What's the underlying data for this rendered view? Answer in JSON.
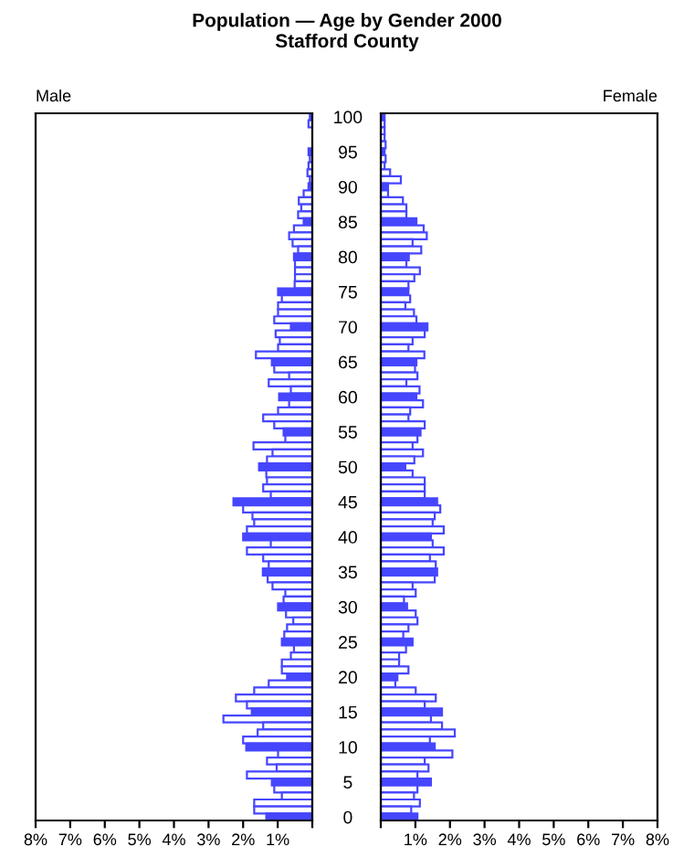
{
  "chart_data": [
    {
      "type": "bar",
      "orientation": "horizontal",
      "title": "Population — Age by Gender 2000",
      "subtitle": "Stafford County",
      "annotations": [
        "Male"
      ],
      "tick_labels": "x",
      "categories": [
        "100",
        null,
        null,
        null,
        null,
        "95",
        null,
        null,
        null,
        null,
        "90",
        null,
        null,
        null,
        null,
        "85",
        null,
        null,
        null,
        null,
        "80",
        null,
        null,
        null,
        null,
        "75",
        null,
        null,
        null,
        null,
        "70",
        null,
        null,
        null,
        null,
        "65",
        null,
        null,
        null,
        null,
        "60",
        null,
        null,
        null,
        null,
        "55",
        null,
        null,
        null,
        null,
        "50",
        null,
        null,
        null,
        null,
        "45",
        null,
        null,
        null,
        null,
        "40",
        null,
        null,
        null,
        null,
        "35",
        null,
        null,
        null,
        null,
        "30",
        null,
        null,
        null,
        null,
        "25",
        null,
        null,
        null,
        null,
        "20",
        null,
        null,
        null,
        null,
        "15",
        null,
        null,
        null,
        null,
        "10",
        null,
        null,
        null,
        null,
        "5",
        null,
        null,
        null,
        null,
        "0"
      ],
      "xlim": [
        8,
        0
      ],
      "xticks": [
        {
          "value": 8,
          "label": "8%"
        },
        {
          "value": 7,
          "label": "7%"
        },
        {
          "value": 6,
          "label": "6%"
        },
        {
          "value": 5,
          "label": "5%"
        },
        {
          "value": 4,
          "label": "4%"
        },
        {
          "value": 3,
          "label": "3%"
        },
        {
          "value": 2,
          "label": "2%"
        },
        {
          "value": 1,
          "label": "1%"
        },
        {
          "value": 0,
          "label": null
        }
      ],
      "series": [
        {
          "color": "#4646ff",
          "colors": [
            "#4646ff",
            "#ffffff",
            "#ffffff",
            "#ffffff",
            "#ffffff",
            "#4646ff",
            "#ffffff",
            "#ffffff",
            "#ffffff",
            "#ffffff",
            "#4646ff",
            "#ffffff",
            "#ffffff",
            "#ffffff",
            "#ffffff",
            "#4646ff",
            "#ffffff",
            "#ffffff",
            "#ffffff",
            "#ffffff",
            "#4646ff",
            "#ffffff",
            "#ffffff",
            "#ffffff",
            "#ffffff",
            "#4646ff",
            "#ffffff",
            "#ffffff",
            "#ffffff",
            "#ffffff",
            "#4646ff",
            "#ffffff",
            "#ffffff",
            "#ffffff",
            "#ffffff",
            "#4646ff",
            "#ffffff",
            "#ffffff",
            "#ffffff",
            "#ffffff",
            "#4646ff",
            "#ffffff",
            "#ffffff",
            "#ffffff",
            "#ffffff",
            "#4646ff",
            "#ffffff",
            "#ffffff",
            "#ffffff",
            "#ffffff",
            "#4646ff",
            "#ffffff",
            "#ffffff",
            "#ffffff",
            "#ffffff",
            "#4646ff",
            "#ffffff",
            "#ffffff",
            "#ffffff",
            "#ffffff",
            "#4646ff",
            "#ffffff",
            "#ffffff",
            "#ffffff",
            "#ffffff",
            "#4646ff",
            "#ffffff",
            "#ffffff",
            "#ffffff",
            "#ffffff",
            "#4646ff",
            "#ffffff",
            "#ffffff",
            "#ffffff",
            "#ffffff",
            "#4646ff",
            "#ffffff",
            "#ffffff",
            "#ffffff",
            "#ffffff",
            "#4646ff",
            "#ffffff",
            "#ffffff",
            "#ffffff",
            "#ffffff",
            "#4646ff",
            "#ffffff",
            "#ffffff",
            "#ffffff",
            "#ffffff",
            "#4646ff",
            "#ffffff",
            "#ffffff",
            "#ffffff",
            "#ffffff",
            "#4646ff",
            "#ffffff",
            "#ffffff",
            "#ffffff",
            "#ffffff",
            "#4646ff"
          ],
          "values": [
            0.07,
            0.11,
            null,
            null,
            null,
            0.11,
            0.07,
            0.11,
            0.14,
            0.07,
            0.11,
            0.25,
            0.39,
            0.32,
            0.41,
            0.25,
            0.53,
            0.67,
            0.57,
            0.41,
            0.53,
            0.5,
            0.5,
            0.5,
            0.51,
            0.99,
            0.88,
            0.99,
            0.99,
            1.1,
            0.62,
            1.06,
            0.94,
            0.99,
            1.63,
            1.17,
            1.1,
            0.67,
            1.26,
            0.62,
            0.96,
            0.67,
            0.99,
            1.42,
            1.1,
            0.83,
            0.78,
            1.7,
            1.15,
            1.31,
            1.54,
            1.33,
            1.31,
            1.42,
            1.2,
            2.28,
            2.0,
            1.73,
            1.68,
            1.89,
            2.0,
            1.2,
            1.89,
            1.42,
            1.26,
            1.43,
            1.29,
            1.15,
            0.78,
            0.83,
            0.99,
            0.76,
            0.55,
            0.73,
            0.81,
            0.88,
            0.53,
            0.62,
            0.88,
            0.88,
            0.73,
            1.26,
            1.68,
            2.21,
            1.89,
            1.75,
            2.57,
            1.42,
            1.58,
            2.0,
            1.91,
            0.99,
            1.31,
            1.03,
            1.89,
            1.17,
            1.1,
            0.88,
            1.68,
            1.68,
            1.33
          ]
        }
      ]
    },
    {
      "type": "bar",
      "orientation": "horizontal",
      "annotations": [
        "Female"
      ],
      "categories": [
        "100",
        null,
        null,
        null,
        null,
        "95",
        null,
        null,
        null,
        null,
        "90",
        null,
        null,
        null,
        null,
        "85",
        null,
        null,
        null,
        null,
        "80",
        null,
        null,
        null,
        null,
        "75",
        null,
        null,
        null,
        null,
        "70",
        null,
        null,
        null,
        null,
        "65",
        null,
        null,
        null,
        null,
        "60",
        null,
        null,
        null,
        null,
        "55",
        null,
        null,
        null,
        null,
        "50",
        null,
        null,
        null,
        null,
        "45",
        null,
        null,
        null,
        null,
        "40",
        null,
        null,
        null,
        null,
        "35",
        null,
        null,
        null,
        null,
        "30",
        null,
        null,
        null,
        null,
        "25",
        null,
        null,
        null,
        null,
        "20",
        null,
        null,
        null,
        null,
        "15",
        null,
        null,
        null,
        null,
        "10",
        null,
        null,
        null,
        null,
        "5",
        null,
        null,
        null,
        null,
        "0"
      ],
      "xlim": [
        0,
        8
      ],
      "xticks": [
        {
          "value": 0,
          "label": null
        },
        {
          "value": 1,
          "label": "1%"
        },
        {
          "value": 2,
          "label": "2%"
        },
        {
          "value": 3,
          "label": "3%"
        },
        {
          "value": 4,
          "label": "4%"
        },
        {
          "value": 5,
          "label": "5%"
        },
        {
          "value": 6,
          "label": "6%"
        },
        {
          "value": 7,
          "label": "7%"
        },
        {
          "value": 8,
          "label": "8%"
        }
      ],
      "series": [
        {
          "color": "#4646ff",
          "colors": [
            "#4646ff",
            "#ffffff",
            "#ffffff",
            "#ffffff",
            "#ffffff",
            "#4646ff",
            "#ffffff",
            "#ffffff",
            "#ffffff",
            "#ffffff",
            "#4646ff",
            "#ffffff",
            "#ffffff",
            "#ffffff",
            "#ffffff",
            "#4646ff",
            "#ffffff",
            "#ffffff",
            "#ffffff",
            "#ffffff",
            "#4646ff",
            "#ffffff",
            "#ffffff",
            "#ffffff",
            "#ffffff",
            "#4646ff",
            "#ffffff",
            "#ffffff",
            "#ffffff",
            "#ffffff",
            "#4646ff",
            "#ffffff",
            "#ffffff",
            "#ffffff",
            "#ffffff",
            "#4646ff",
            "#ffffff",
            "#ffffff",
            "#ffffff",
            "#ffffff",
            "#4646ff",
            "#ffffff",
            "#ffffff",
            "#ffffff",
            "#ffffff",
            "#4646ff",
            "#ffffff",
            "#ffffff",
            "#ffffff",
            "#ffffff",
            "#4646ff",
            "#ffffff",
            "#ffffff",
            "#ffffff",
            "#ffffff",
            "#4646ff",
            "#ffffff",
            "#ffffff",
            "#ffffff",
            "#ffffff",
            "#4646ff",
            "#ffffff",
            "#ffffff",
            "#ffffff",
            "#ffffff",
            "#4646ff",
            "#ffffff",
            "#ffffff",
            "#ffffff",
            "#ffffff",
            "#4646ff",
            "#ffffff",
            "#ffffff",
            "#ffffff",
            "#ffffff",
            "#4646ff",
            "#ffffff",
            "#ffffff",
            "#ffffff",
            "#ffffff",
            "#4646ff",
            "#ffffff",
            "#ffffff",
            "#ffffff",
            "#ffffff",
            "#4646ff",
            "#ffffff",
            "#ffffff",
            "#ffffff",
            "#ffffff",
            "#4646ff",
            "#ffffff",
            "#ffffff",
            "#ffffff",
            "#ffffff",
            "#4646ff",
            "#ffffff",
            "#ffffff",
            "#ffffff",
            "#ffffff",
            "#4646ff"
          ],
          "values": [
            0.11,
            0.11,
            0.11,
            0.11,
            0.14,
            0.11,
            0.14,
            0.11,
            0.27,
            0.58,
            0.21,
            0.21,
            0.64,
            0.74,
            0.74,
            1.03,
            1.24,
            1.33,
            0.92,
            1.17,
            0.81,
            0.74,
            1.13,
            0.97,
            0.8,
            0.8,
            0.85,
            0.71,
            0.96,
            1.03,
            1.35,
            1.27,
            0.92,
            0.8,
            1.26,
            1.03,
            0.99,
            1.06,
            0.74,
            1.12,
            1.03,
            1.22,
            0.85,
            0.8,
            1.27,
            1.15,
            1.06,
            0.92,
            1.22,
            0.97,
            0.71,
            0.92,
            1.27,
            1.27,
            1.27,
            1.63,
            1.72,
            1.56,
            1.5,
            1.82,
            1.45,
            1.5,
            1.82,
            1.42,
            1.59,
            1.63,
            1.56,
            0.92,
            1.01,
            0.67,
            0.76,
            1.01,
            1.06,
            0.8,
            0.65,
            0.92,
            0.73,
            0.53,
            0.53,
            0.8,
            0.48,
            0.42,
            1.01,
            1.59,
            1.27,
            1.77,
            1.45,
            1.77,
            2.14,
            1.42,
            1.56,
            2.07,
            1.27,
            1.38,
            1.06,
            1.45,
            1.06,
            0.96,
            1.13,
            0.88,
            1.06
          ]
        }
      ]
    }
  ]
}
